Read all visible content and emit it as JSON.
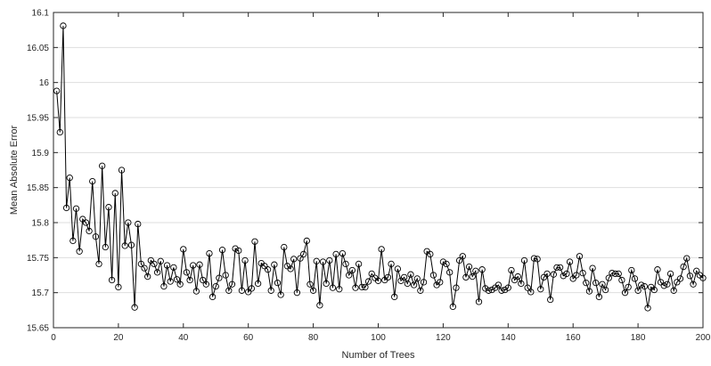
{
  "chart_data": {
    "type": "line",
    "title": "",
    "xlabel": "Number of Trees",
    "ylabel": "Mean Absolute Error",
    "xlim": [
      0,
      200
    ],
    "ylim": [
      15.65,
      16.1
    ],
    "xticks": [
      "0",
      "20",
      "40",
      "60",
      "80",
      "100",
      "120",
      "140",
      "160",
      "180",
      "200"
    ],
    "yticks": [
      "15.65",
      "15.7",
      "15.75",
      "15.8",
      "15.85",
      "15.9",
      "15.95",
      "16",
      "16.05",
      "16.1"
    ],
    "grid": "horizontal",
    "marker": "circle",
    "line_color": "#000000",
    "series": [
      {
        "x": [
          1,
          2,
          3,
          4,
          5,
          6,
          7,
          8,
          9,
          10,
          11,
          12,
          13,
          14,
          15,
          16,
          17,
          18,
          19,
          20,
          21,
          22,
          23,
          24,
          25,
          26,
          27,
          28,
          29,
          30,
          31,
          32,
          33,
          34,
          35,
          36,
          37,
          38,
          39,
          40,
          41,
          42,
          43,
          44,
          45,
          46,
          47,
          48,
          49,
          50,
          51,
          52,
          53,
          54,
          55,
          56,
          57,
          58,
          59,
          60,
          61,
          62,
          63,
          64,
          65,
          66,
          67,
          68,
          69,
          70,
          71,
          72,
          73,
          74,
          75,
          76,
          77,
          78,
          79,
          80,
          81,
          82,
          83,
          84,
          85,
          86,
          87,
          88,
          89,
          90,
          91,
          92,
          93,
          94,
          95,
          96,
          97,
          98,
          99,
          100,
          101,
          102,
          103,
          104,
          105,
          106,
          107,
          108,
          109,
          110,
          111,
          112,
          113,
          114,
          115,
          116,
          117,
          118,
          119,
          120,
          121,
          122,
          123,
          124,
          125,
          126,
          127,
          128,
          129,
          130,
          131,
          132,
          133,
          134,
          135,
          136,
          137,
          138,
          139,
          140,
          141,
          142,
          143,
          144,
          145,
          146,
          147,
          148,
          149,
          150,
          151,
          152,
          153,
          154,
          155,
          156,
          157,
          158,
          159,
          160,
          161,
          162,
          163,
          164,
          165,
          166,
          167,
          168,
          169,
          170,
          171,
          172,
          173,
          174,
          175,
          176,
          177,
          178,
          179,
          180,
          181,
          182,
          183,
          184,
          185,
          186,
          187,
          188,
          189,
          190,
          191,
          192,
          193,
          194,
          195,
          196,
          197,
          198,
          199,
          200
        ],
        "y": [
          15.988,
          15.929,
          16.081,
          15.821,
          15.864,
          15.774,
          15.82,
          15.759,
          15.805,
          15.8,
          15.788,
          15.859,
          15.78,
          15.741,
          15.881,
          15.765,
          15.822,
          15.718,
          15.842,
          15.708,
          15.875,
          15.767,
          15.8,
          15.768,
          15.679,
          15.798,
          15.741,
          15.735,
          15.723,
          15.746,
          15.741,
          15.729,
          15.745,
          15.709,
          15.739,
          15.716,
          15.736,
          15.719,
          15.712,
          15.762,
          15.729,
          15.718,
          15.739,
          15.702,
          15.74,
          15.718,
          15.712,
          15.756,
          15.694,
          15.709,
          15.721,
          15.761,
          15.725,
          15.703,
          15.712,
          15.763,
          15.76,
          15.703,
          15.746,
          15.701,
          15.706,
          15.773,
          15.713,
          15.742,
          15.738,
          15.733,
          15.703,
          15.74,
          15.714,
          15.697,
          15.765,
          15.738,
          15.734,
          15.748,
          15.7,
          15.749,
          15.755,
          15.774,
          15.712,
          15.703,
          15.745,
          15.682,
          15.744,
          15.713,
          15.746,
          15.707,
          15.755,
          15.705,
          15.756,
          15.741,
          15.725,
          15.732,
          15.707,
          15.741,
          15.708,
          15.708,
          15.716,
          15.727,
          15.721,
          15.717,
          15.762,
          15.718,
          15.722,
          15.741,
          15.694,
          15.734,
          15.717,
          15.722,
          15.713,
          15.726,
          15.711,
          15.72,
          15.703,
          15.715,
          15.759,
          15.755,
          15.725,
          15.711,
          15.715,
          15.744,
          15.741,
          15.729,
          15.68,
          15.707,
          15.746,
          15.752,
          15.722,
          15.737,
          15.723,
          15.731,
          15.687,
          15.733,
          15.706,
          15.703,
          15.704,
          15.707,
          15.711,
          15.703,
          15.704,
          15.707,
          15.732,
          15.718,
          15.723,
          15.713,
          15.746,
          15.707,
          15.701,
          15.749,
          15.748,
          15.705,
          15.722,
          15.727,
          15.69,
          15.726,
          15.736,
          15.736,
          15.724,
          15.727,
          15.744,
          15.72,
          15.725,
          15.752,
          15.728,
          15.714,
          15.702,
          15.735,
          15.714,
          15.694,
          15.712,
          15.704,
          15.721,
          15.728,
          15.727,
          15.727,
          15.718,
          15.7,
          15.708,
          15.732,
          15.72,
          15.703,
          15.711,
          15.709,
          15.678,
          15.708,
          15.704,
          15.733,
          15.715,
          15.71,
          15.712,
          15.727,
          15.703,
          15.715,
          15.72,
          15.737,
          15.749,
          15.724,
          15.712,
          15.731,
          15.725,
          15.721
        ]
      }
    ]
  }
}
